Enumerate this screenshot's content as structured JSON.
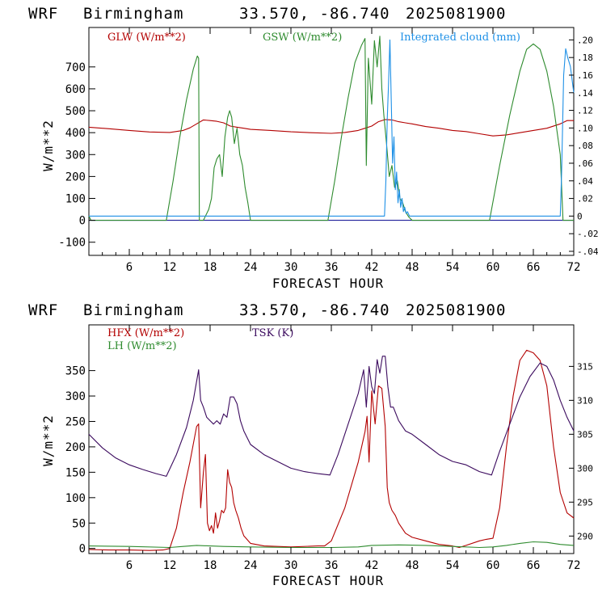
{
  "colors": {
    "glw": "#b30000",
    "gsw": "#2e8b2e",
    "cloud": "#1e90e6",
    "hfx": "#b30000",
    "lh": "#2e8b2e",
    "tsk": "#3b0a5e",
    "zero": "#00008b"
  },
  "panels": [
    {
      "header": {
        "model": "WRF",
        "site": "Birmingham",
        "coords": "33.570, -86.740",
        "run": "2025081900"
      },
      "ylabel": "W/m**2",
      "xlabel": "FORECAST HOUR",
      "legend": {
        "glw": "GLW (W/m**2)",
        "gsw": "GSW (W/m**2)",
        "cloud": "Integrated cloud (mm)"
      },
      "xticks": [
        "6",
        "12",
        "18",
        "24",
        "30",
        "36",
        "42",
        "48",
        "54",
        "60",
        "66",
        "72"
      ],
      "yticks": [
        "-100",
        "0",
        "100",
        "200",
        "300",
        "400",
        "500",
        "600",
        "700"
      ],
      "rticks": [
        ".20",
        ".18",
        ".16",
        ".14",
        ".12",
        ".10",
        ".08",
        ".06",
        ".04",
        ".02",
        "0",
        "-.02",
        "-.04"
      ]
    },
    {
      "header": {
        "model": "WRF",
        "site": "Birmingham",
        "coords": "33.570, -86.740",
        "run": "2025081900"
      },
      "ylabel": "W/m**2",
      "xlabel": "FORECAST HOUR",
      "legend": {
        "hfx": "HFX (W/m**2)",
        "lh": "LH  (W/m**2)",
        "tsk": "TSK (K)"
      },
      "xticks": [
        "6",
        "12",
        "18",
        "24",
        "30",
        "36",
        "42",
        "48",
        "54",
        "60",
        "66",
        "72"
      ],
      "yticks": [
        "0",
        "50",
        "100",
        "150",
        "200",
        "250",
        "300",
        "350"
      ],
      "rticks": [
        "315",
        "310",
        "305",
        "300",
        "295",
        "290"
      ]
    }
  ],
  "chart_data": [
    {
      "type": "line",
      "xlim": [
        0,
        72
      ],
      "ylim": [
        -160,
        880
      ],
      "y2lim": [
        -0.0446,
        0.2141
      ],
      "series": [
        {
          "name": "GLW (W/m**2)",
          "axis": "left",
          "x": [
            0,
            3,
            6,
            9,
            12,
            14,
            15,
            16,
            17,
            18,
            19,
            20,
            21,
            22,
            23,
            24,
            27,
            30,
            33,
            36,
            38,
            40,
            41,
            42,
            43,
            44,
            45,
            46,
            47,
            48,
            50,
            52,
            54,
            56,
            58,
            60,
            62,
            64,
            66,
            68,
            70,
            71,
            72
          ],
          "y": [
            425,
            418,
            410,
            403,
            401,
            410,
            422,
            440,
            458,
            455,
            452,
            445,
            430,
            425,
            420,
            415,
            410,
            404,
            400,
            397,
            401,
            410,
            420,
            430,
            450,
            460,
            458,
            450,
            445,
            440,
            428,
            420,
            410,
            405,
            395,
            385,
            390,
            400,
            410,
            420,
            440,
            455,
            455
          ]
        },
        {
          "name": "GSW (W/m**2)",
          "axis": "left",
          "x": [
            0,
            0.3,
            1,
            11.5,
            12.5,
            13.5,
            14.5,
            15.5,
            16.1,
            16.3,
            16.4,
            17,
            17.8,
            18.2,
            18.6,
            19.0,
            19.4,
            19.8,
            20.2,
            20.6,
            20.9,
            21.2,
            21.6,
            22.0,
            22.4,
            22.8,
            23.2,
            23.6,
            24.0,
            35.5,
            36.5,
            37.5,
            38.5,
            39.5,
            40.5,
            41.0,
            41.2,
            41.5,
            42.0,
            42.4,
            42.8,
            43.2,
            43.5,
            43.8,
            44.2,
            44.6,
            45.0,
            45.4,
            45.8,
            46.2,
            46.6,
            47.0,
            47.5,
            48.0,
            59.5,
            61,
            62.5,
            64,
            65,
            66,
            67,
            68,
            69,
            70,
            70.4,
            70.8,
            72
          ],
          "y": [
            20,
            0,
            0,
            0,
            180,
            380,
            550,
            690,
            750,
            740,
            0,
            0,
            50,
            100,
            240,
            280,
            300,
            200,
            380,
            470,
            500,
            470,
            350,
            420,
            300,
            250,
            150,
            80,
            0,
            0,
            180,
            380,
            560,
            720,
            800,
            830,
            250,
            740,
            530,
            820,
            700,
            840,
            600,
            480,
            350,
            200,
            250,
            150,
            180,
            100,
            80,
            40,
            15,
            0,
            0,
            250,
            480,
            680,
            780,
            805,
            780,
            680,
            520,
            300,
            0,
            0,
            0
          ]
        },
        {
          "name": "Integrated cloud (mm)",
          "axis": "right",
          "x": [
            0,
            43.9,
            44.1,
            44.3,
            44.5,
            44.7,
            44.9,
            45.1,
            45.3,
            45.5,
            45.7,
            45.9,
            46.1,
            46.3,
            46.5,
            46.7,
            46.9,
            47.1,
            47.3,
            47.6,
            48.0,
            70.0,
            70.2,
            70.5,
            70.8,
            71.1,
            71.5,
            72
          ],
          "y": [
            0,
            0,
            0.04,
            0.11,
            0.15,
            0.2,
            0.13,
            0.06,
            0.09,
            0.03,
            0.05,
            0.015,
            0.03,
            0.01,
            0.02,
            0.005,
            0.01,
            0.003,
            0.005,
            0,
            0,
            0,
            0.05,
            0.16,
            0.19,
            0.18,
            0.17,
            0.14
          ]
        }
      ]
    },
    {
      "type": "line",
      "xlim": [
        0,
        72
      ],
      "ylim": [
        -10,
        440
      ],
      "y2lim": [
        287.42,
        321.12
      ],
      "series": [
        {
          "name": "HFX (W/m**2)",
          "axis": "left",
          "x": [
            0,
            3,
            6,
            9,
            11,
            12,
            13,
            14,
            15,
            16,
            16.3,
            16.6,
            17.0,
            17.3,
            17.6,
            17.9,
            18.2,
            18.5,
            18.8,
            19.1,
            19.4,
            19.7,
            20.0,
            20.3,
            20.6,
            20.9,
            21.2,
            21.5,
            21.8,
            22.2,
            22.6,
            23,
            24,
            26,
            30,
            34,
            35,
            36,
            38,
            40,
            41,
            41.3,
            41.6,
            42.0,
            42.5,
            43.0,
            43.5,
            44.0,
            44.3,
            44.6,
            45.0,
            45.5,
            46.0,
            47.0,
            48.0,
            50,
            52,
            54,
            55,
            56,
            58,
            59,
            60,
            61,
            62,
            63,
            64,
            65,
            66,
            67,
            68,
            69,
            70,
            71,
            72
          ],
          "y": [
            -2,
            -3,
            -3,
            -4,
            -3,
            0,
            40,
            110,
            170,
            240,
            245,
            80,
            150,
            185,
            50,
            35,
            45,
            30,
            70,
            40,
            55,
            75,
            70,
            80,
            155,
            130,
            120,
            90,
            75,
            60,
            40,
            25,
            10,
            5,
            3,
            5,
            5,
            15,
            80,
            170,
            230,
            260,
            170,
            310,
            245,
            320,
            315,
            240,
            120,
            90,
            75,
            65,
            50,
            30,
            22,
            15,
            8,
            5,
            2,
            6,
            15,
            18,
            20,
            80,
            200,
            300,
            370,
            390,
            385,
            370,
            320,
            200,
            110,
            70,
            60
          ]
        },
        {
          "name": "LH  (W/m**2)",
          "axis": "left",
          "x": [
            0,
            6,
            12,
            14,
            16,
            18,
            20,
            24,
            30,
            36,
            40,
            42,
            46,
            50,
            54,
            58,
            60,
            62,
            64,
            66,
            68,
            70,
            72
          ],
          "y": [
            5,
            4,
            2,
            4,
            6,
            5,
            4,
            3,
            2,
            2,
            3,
            6,
            7,
            6,
            4,
            2,
            3,
            6,
            10,
            13,
            12,
            8,
            6
          ]
        },
        {
          "name": "TSK (K)",
          "axis": "right",
          "x": [
            0,
            2,
            4,
            6,
            8,
            10,
            11.5,
            13,
            14.5,
            15.5,
            16.3,
            16.6,
            17.0,
            17.5,
            18.0,
            18.5,
            19.0,
            19.5,
            20.0,
            20.5,
            21.0,
            21.5,
            22.0,
            22.5,
            23.0,
            24.0,
            26,
            28,
            30,
            32,
            34,
            35.8,
            37,
            38.5,
            40,
            40.8,
            41.2,
            41.6,
            42.0,
            42.4,
            42.8,
            43.2,
            43.6,
            44.0,
            44.4,
            44.8,
            45.2,
            45.6,
            46.0,
            47.0,
            48.0,
            50,
            52,
            54,
            56,
            58,
            59.8,
            61,
            62.5,
            64,
            65.5,
            67,
            68,
            69,
            70,
            71,
            72
          ],
          "y": [
            305,
            303,
            301.5,
            300.5,
            299.8,
            299.2,
            298.8,
            302,
            306,
            310,
            314.5,
            310,
            309,
            307.5,
            307,
            306.5,
            307,
            306.5,
            308,
            307.5,
            310.5,
            310.5,
            309.5,
            307,
            305.5,
            303.5,
            302,
            301,
            300,
            299.5,
            299.2,
            299,
            302,
            306.5,
            311,
            314.5,
            309,
            315,
            312,
            311,
            316,
            314,
            316.5,
            316.5,
            312,
            309,
            309,
            308,
            307,
            305.5,
            305,
            303.5,
            302,
            301,
            300.5,
            299.5,
            299,
            302.5,
            306.5,
            310.5,
            313.5,
            315.5,
            315,
            313,
            310,
            307.5,
            305.5
          ]
        }
      ]
    }
  ]
}
